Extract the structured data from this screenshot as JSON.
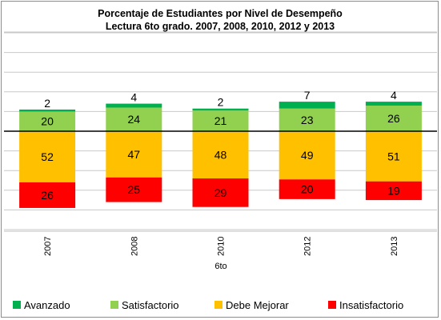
{
  "chart_data": {
    "type": "bar",
    "stacked": true,
    "diverging": true,
    "title": "Porcentaje de Estudiantes por Nivel de Desempeño",
    "subtitle": "Lectura 6to grado. 2007, 2008, 2010, 2012 y 2013",
    "categories": [
      "2007",
      "2008",
      "2010",
      "2012",
      "2013"
    ],
    "xlabel": "6to",
    "ylabel": "",
    "grid": true,
    "legend_position": "bottom",
    "series": [
      {
        "name": "Avanzado",
        "color": "#00B050",
        "side": "positive",
        "values": [
          2,
          4,
          2,
          7,
          4
        ]
      },
      {
        "name": "Satisfactorio",
        "color": "#92D050",
        "side": "positive",
        "values": [
          20,
          24,
          21,
          23,
          26
        ]
      },
      {
        "name": "Debe Mejorar",
        "color": "#FFC000",
        "side": "negative",
        "values": [
          52,
          47,
          48,
          49,
          51
        ]
      },
      {
        "name": "Insatisfactorio",
        "color": "#FF0000",
        "side": "negative",
        "values": [
          26,
          25,
          29,
          20,
          19
        ]
      }
    ]
  }
}
